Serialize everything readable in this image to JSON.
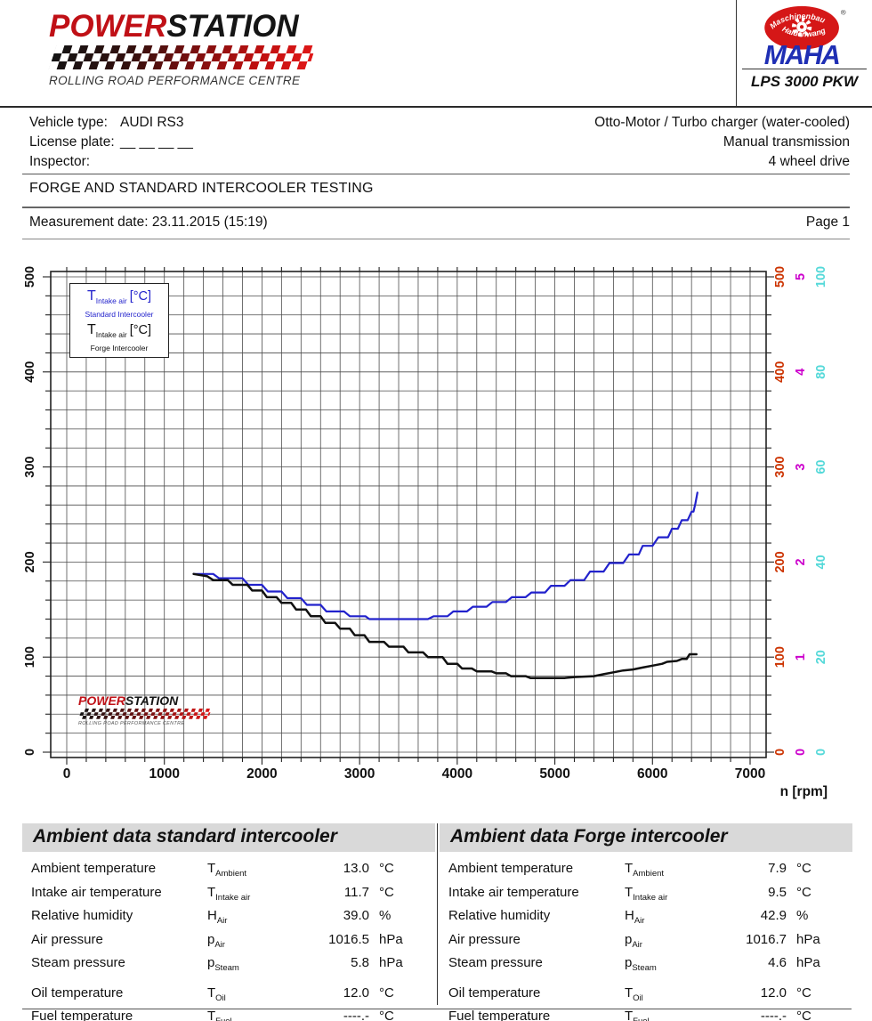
{
  "header": {
    "brand": {
      "power": "POWER",
      "station": "STATION",
      "tagline": "ROLLING ROAD PERFORMANCE CENTRE",
      "red": "#c01016",
      "black": "#151515"
    },
    "maha": {
      "oval_top": "Maschinenbau",
      "oval_bottom": "Haldenwang",
      "name": "MAHA",
      "registered": "®",
      "model": "LPS 3000 PKW",
      "oval_color": "#d51717",
      "name_color": "#1f2fb4"
    }
  },
  "vehicle_info": {
    "rows": [
      {
        "label": "Vehicle type:",
        "value": "AUDI RS3"
      },
      {
        "label": "License plate:",
        "value": "__ __ __ __"
      },
      {
        "label": "Inspector:",
        "value": ""
      }
    ],
    "right": [
      "Otto-Motor / Turbo charger (water-cooled)",
      "Manual transmission",
      "4 wheel drive"
    ],
    "test_title": "FORGE AND STANDARD INTERCOOLER TESTING",
    "measurement_date": "Measurement date: 23.11.2015 (15:19)",
    "page": "Page 1"
  },
  "chart_data": {
    "type": "line",
    "title": "",
    "xlabel": "n [rpm]",
    "xlim": [
      0,
      7000
    ],
    "x_ticks": [
      0,
      1000,
      2000,
      3000,
      4000,
      5000,
      6000,
      7000
    ],
    "x_minor_step": 200,
    "grid": true,
    "grid_color": "#4d4d4d",
    "legend_position": "top-left",
    "y_axes": [
      {
        "side": "left",
        "x": 13,
        "color": "#111111",
        "range": [
          0,
          500
        ],
        "ticks": [
          0,
          100,
          200,
          300,
          400,
          500
        ],
        "minor_step": 20
      },
      {
        "side": "right",
        "x": 856,
        "color": "#cc3300",
        "range": [
          0,
          500
        ],
        "ticks": [
          0,
          100,
          200,
          300,
          400,
          500
        ]
      },
      {
        "side": "right",
        "x": 879,
        "color": "#cc00cc",
        "range": [
          0,
          5
        ],
        "ticks": [
          0,
          1,
          2,
          3,
          4,
          5
        ]
      },
      {
        "side": "right",
        "x": 902,
        "color": "#55d9d9",
        "range": [
          0,
          100
        ],
        "ticks": [
          0,
          20,
          40,
          60,
          80,
          100
        ]
      }
    ],
    "legend": [
      {
        "symbol": "T",
        "subscript": "Intake air",
        "unit": "[°C]",
        "series": "Standard Intercooler",
        "color": "#2222cc"
      },
      {
        "symbol": "T",
        "subscript": "Intake air",
        "unit": "[°C]",
        "series": "Forge Intercooler",
        "color": "#111111"
      }
    ],
    "series": [
      {
        "name": "Standard Intercooler",
        "color": "#2222cc",
        "stroke_width": 2.2,
        "unit": "°C",
        "axis_index": 3,
        "points": [
          [
            1300,
            37.5
          ],
          [
            1500,
            37.5
          ],
          [
            1560,
            36.6
          ],
          [
            1800,
            36.6
          ],
          [
            1860,
            35.2
          ],
          [
            2000,
            35.2
          ],
          [
            2060,
            33.8
          ],
          [
            2200,
            33.8
          ],
          [
            2260,
            32.4
          ],
          [
            2400,
            32.4
          ],
          [
            2460,
            31.0
          ],
          [
            2600,
            31.0
          ],
          [
            2660,
            29.6
          ],
          [
            2840,
            29.6
          ],
          [
            2900,
            28.6
          ],
          [
            3060,
            28.6
          ],
          [
            3100,
            28.0
          ],
          [
            3700,
            28.0
          ],
          [
            3760,
            28.6
          ],
          [
            3900,
            28.6
          ],
          [
            3960,
            29.6
          ],
          [
            4100,
            29.6
          ],
          [
            4160,
            30.6
          ],
          [
            4300,
            30.6
          ],
          [
            4360,
            31.6
          ],
          [
            4500,
            31.6
          ],
          [
            4560,
            32.6
          ],
          [
            4700,
            32.6
          ],
          [
            4760,
            33.6
          ],
          [
            4900,
            33.6
          ],
          [
            4960,
            35.0
          ],
          [
            5100,
            35.0
          ],
          [
            5160,
            36.2
          ],
          [
            5300,
            36.2
          ],
          [
            5360,
            38.0
          ],
          [
            5500,
            38.0
          ],
          [
            5560,
            39.8
          ],
          [
            5700,
            39.8
          ],
          [
            5760,
            41.6
          ],
          [
            5860,
            41.6
          ],
          [
            5900,
            43.4
          ],
          [
            6000,
            43.4
          ],
          [
            6060,
            45.2
          ],
          [
            6160,
            45.2
          ],
          [
            6200,
            47.0
          ],
          [
            6260,
            47.0
          ],
          [
            6300,
            48.8
          ],
          [
            6360,
            48.8
          ],
          [
            6400,
            50.6
          ],
          [
            6420,
            50.6
          ],
          [
            6440,
            52.4
          ],
          [
            6460,
            54.6
          ]
        ]
      },
      {
        "name": "Forge Intercooler",
        "color": "#111111",
        "stroke_width": 2.5,
        "unit": "°C",
        "axis_index": 3,
        "points": [
          [
            1300,
            37.5
          ],
          [
            1440,
            37.0
          ],
          [
            1500,
            36.2
          ],
          [
            1650,
            36.2
          ],
          [
            1700,
            35.2
          ],
          [
            1850,
            35.2
          ],
          [
            1900,
            34.0
          ],
          [
            2000,
            34.0
          ],
          [
            2050,
            32.6
          ],
          [
            2150,
            32.6
          ],
          [
            2200,
            31.4
          ],
          [
            2300,
            31.4
          ],
          [
            2350,
            30.0
          ],
          [
            2450,
            30.0
          ],
          [
            2500,
            28.6
          ],
          [
            2600,
            28.6
          ],
          [
            2650,
            27.2
          ],
          [
            2750,
            27.2
          ],
          [
            2800,
            26.0
          ],
          [
            2900,
            26.0
          ],
          [
            2950,
            24.6
          ],
          [
            3050,
            24.6
          ],
          [
            3100,
            23.2
          ],
          [
            3250,
            23.2
          ],
          [
            3300,
            22.2
          ],
          [
            3450,
            22.2
          ],
          [
            3500,
            21.0
          ],
          [
            3650,
            21.0
          ],
          [
            3700,
            20.0
          ],
          [
            3850,
            20.0
          ],
          [
            3900,
            18.6
          ],
          [
            4000,
            18.6
          ],
          [
            4050,
            17.6
          ],
          [
            4150,
            17.6
          ],
          [
            4200,
            17.0
          ],
          [
            4350,
            17.0
          ],
          [
            4400,
            16.6
          ],
          [
            4500,
            16.6
          ],
          [
            4550,
            16.0
          ],
          [
            4700,
            16.0
          ],
          [
            4750,
            15.6
          ],
          [
            5100,
            15.6
          ],
          [
            5200,
            15.8
          ],
          [
            5400,
            16.0
          ],
          [
            5500,
            16.4
          ],
          [
            5600,
            16.8
          ],
          [
            5700,
            17.2
          ],
          [
            5800,
            17.4
          ],
          [
            5900,
            17.8
          ],
          [
            6000,
            18.2
          ],
          [
            6100,
            18.6
          ],
          [
            6150,
            19.0
          ],
          [
            6250,
            19.2
          ],
          [
            6300,
            19.6
          ],
          [
            6350,
            19.6
          ],
          [
            6380,
            20.6
          ],
          [
            6450,
            20.6
          ]
        ]
      }
    ],
    "note": "Temperature curves read on the cyan 0-100 axis in °C; left black axis 0-500, red axis 0-500, magenta axis 0-5 share the same gridlines."
  },
  "ambient_tables": [
    {
      "title": "Ambient data standard intercooler",
      "rows": [
        {
          "label": "Ambient temperature",
          "sym": "T",
          "sub": "Ambient",
          "value": "13.0",
          "unit": "°C"
        },
        {
          "label": "Intake air temperature",
          "sym": "T",
          "sub": "Intake air",
          "value": "11.7",
          "unit": "°C"
        },
        {
          "label": "Relative humidity",
          "sym": "H",
          "sub": "Air",
          "value": "39.0",
          "unit": "%"
        },
        {
          "label": "Air pressure",
          "sym": "p",
          "sub": "Air",
          "value": "1016.5",
          "unit": "hPa"
        },
        {
          "label": "Steam pressure",
          "sym": "p",
          "sub": "Steam",
          "value": "5.8",
          "unit": "hPa"
        },
        {
          "label": "Oil temperature",
          "sym": "T",
          "sub": "Oil",
          "value": "12.0",
          "unit": "°C",
          "gap": true
        },
        {
          "label": "Fuel temperature",
          "sym": "T",
          "sub": "Fuel",
          "value": "----.-",
          "unit": "°C"
        }
      ]
    },
    {
      "title": "Ambient data Forge intercooler",
      "rows": [
        {
          "label": "Ambient temperature",
          "sym": "T",
          "sub": "Ambient",
          "value": "7.9",
          "unit": "°C"
        },
        {
          "label": "Intake air temperature",
          "sym": "T",
          "sub": "Intake air",
          "value": "9.5",
          "unit": "°C"
        },
        {
          "label": "Relative humidity",
          "sym": "H",
          "sub": "Air",
          "value": "42.9",
          "unit": "%"
        },
        {
          "label": "Air pressure",
          "sym": "p",
          "sub": "Air",
          "value": "1016.7",
          "unit": "hPa"
        },
        {
          "label": "Steam pressure",
          "sym": "p",
          "sub": "Steam",
          "value": "4.6",
          "unit": "hPa"
        },
        {
          "label": "Oil temperature",
          "sym": "T",
          "sub": "Oil",
          "value": "12.0",
          "unit": "°C",
          "gap": true
        },
        {
          "label": "Fuel temperature",
          "sym": "T",
          "sub": "Fuel",
          "value": "----.-",
          "unit": "°C"
        }
      ]
    }
  ]
}
